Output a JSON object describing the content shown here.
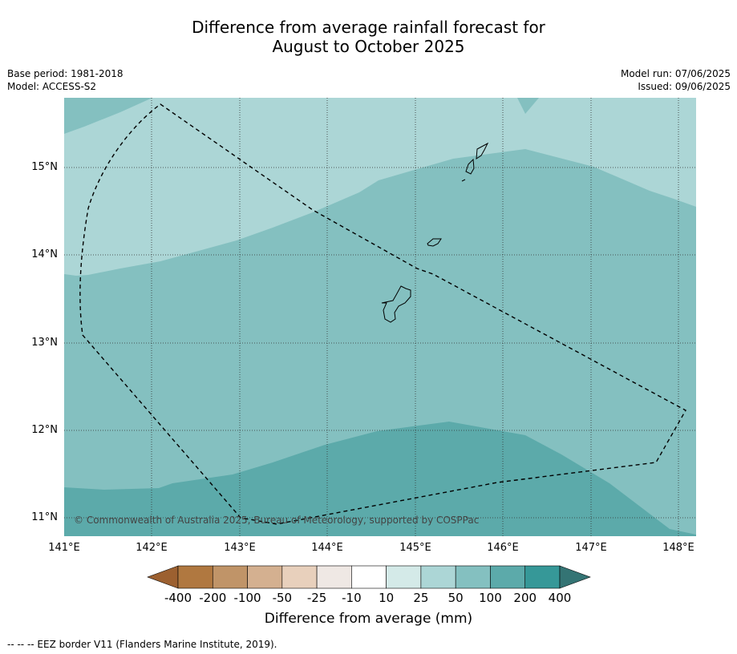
{
  "title_line1": "Difference from average rainfall forecast for",
  "title_line2": "August to October 2025",
  "base_period": "Base period: 1981-2018",
  "model": "Model: ACCESS-S2",
  "model_run": "Model run: 07/06/2025",
  "issued": "Issued: 09/06/2025",
  "copyright": "© Commonwealth of Australia 2025, Bureau of Meteorology, supported by COSPPac",
  "lon_ticks": [
    "141°E",
    "142°E",
    "143°E",
    "144°E",
    "145°E",
    "146°E",
    "147°E",
    "148°E"
  ],
  "lat_ticks": [
    "15°N",
    "14°N",
    "13°N",
    "12°N",
    "11°N"
  ],
  "colorbar": {
    "labels": [
      "-400",
      "-200",
      "-100",
      "-50",
      "-25",
      "-10",
      "10",
      "25",
      "50",
      "100",
      "200",
      "400"
    ],
    "colors": [
      "#9c6030",
      "#b07840",
      "#c09468",
      "#d4b090",
      "#e8d0bc",
      "#efe8e4",
      "#ffffff",
      "#d4eae8",
      "#acd6d6",
      "#84c0c0",
      "#5caaaa",
      "#369898",
      "#347474"
    ],
    "title": "Difference from average (mm)"
  },
  "footnote": "--  --  -- EEZ border V11 (Flanders Marine Institute, 2019)."
}
